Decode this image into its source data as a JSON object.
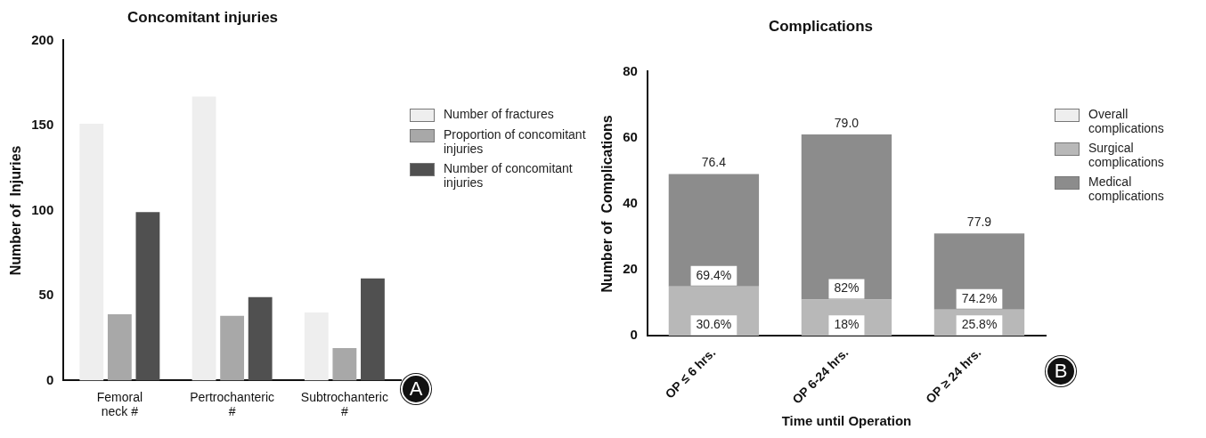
{
  "chart_data": [
    {
      "type": "bar",
      "title": "Concomitant injuries",
      "ylabel": "Number of  Injuries",
      "categories": [
        "Femoral neck #",
        "Pertrochanteric #",
        "Subtrochanteric #"
      ],
      "series": [
        {
          "name": "Number of fractures",
          "color": "#eeeeee",
          "values": [
            151,
            167,
            40
          ]
        },
        {
          "name": "Proportion of concomitant injuries",
          "color": "#a8a8a8",
          "values": [
            39,
            38,
            19
          ]
        },
        {
          "name": "Number of concomitant injuries",
          "color": "#505050",
          "values": [
            99,
            49,
            60
          ]
        }
      ],
      "ylim": [
        0,
        200
      ],
      "yticks": [
        0,
        50,
        100,
        150,
        200
      ],
      "grid": false,
      "legend": "right",
      "annotations": [
        "A"
      ]
    },
    {
      "type": "bar",
      "title": "Complications",
      "xlabel": "Time until Operation",
      "ylabel": "Number of  Complications",
      "categories": [
        "OP ≤ 6 hrs.",
        "OP 6-24 hrs.",
        "OP ≥ 24 hrs."
      ],
      "series": [
        {
          "name": "Overall complications",
          "color": "#eeeeee",
          "values": [
            null,
            null,
            null
          ]
        },
        {
          "name": "Surgical complications",
          "color": "#b8b8b8",
          "values": [
            15,
            11,
            8
          ]
        },
        {
          "name": "Medical complications",
          "color": "#8c8c8c",
          "values": [
            34,
            50,
            23
          ]
        }
      ],
      "stacked": true,
      "ylim": [
        0,
        80
      ],
      "yticks": [
        0,
        20,
        40,
        60,
        80
      ],
      "grid": false,
      "legend": "right",
      "annotations": [
        {
          "text": "76.4",
          "x": "OP ≤ 6 hrs.",
          "y": 49
        },
        {
          "text": "79.0",
          "x": "OP 6-24 hrs.",
          "y": 61
        },
        {
          "text": "77.9",
          "x": "OP ≥ 24 hrs.",
          "y": 31
        },
        {
          "text": "30.6%",
          "x": "OP ≤ 6 hrs.",
          "y": 0
        },
        {
          "text": "18%",
          "x": "OP 6-24 hrs.",
          "y": 0
        },
        {
          "text": "25.8%",
          "x": "OP ≥ 24 hrs.",
          "y": 0
        },
        {
          "text": "69.4%",
          "x": "OP ≤ 6 hrs.",
          "y": 15
        },
        {
          "text": "82%",
          "x": "OP 6-24 hrs.",
          "y": 11
        },
        {
          "text": "74.2%",
          "x": "OP ≥ 24 hrs.",
          "y": 8
        },
        "B"
      ]
    }
  ]
}
